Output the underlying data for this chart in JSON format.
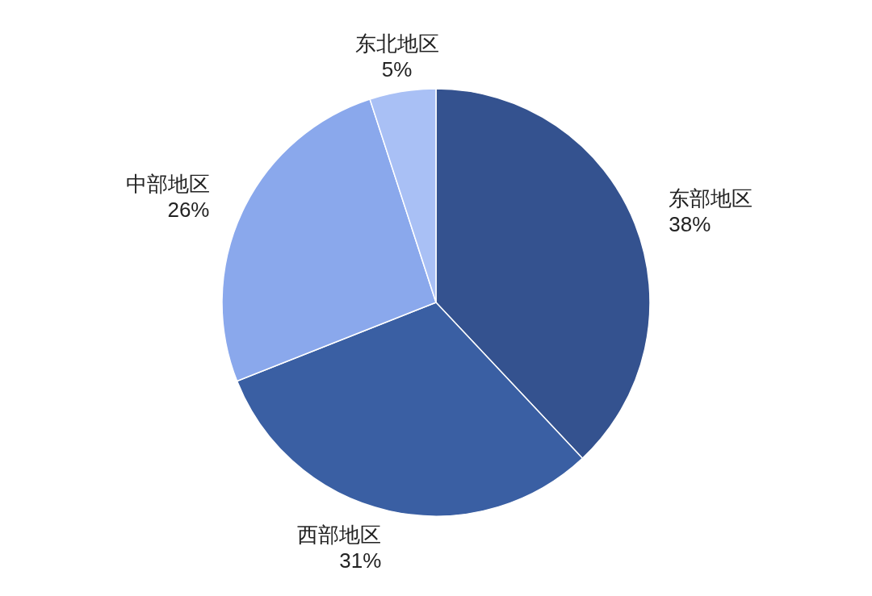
{
  "chart_data": {
    "type": "pie",
    "categories": [
      "东部地区",
      "西部地区",
      "中部地区",
      "东北地区"
    ],
    "values": [
      38,
      31,
      26,
      5
    ],
    "value_labels": [
      "38%",
      "31%",
      "26%",
      "5%"
    ],
    "colors": [
      "#34528f",
      "#3a5fa3",
      "#8aa8ec",
      "#a9c0f5"
    ]
  }
}
